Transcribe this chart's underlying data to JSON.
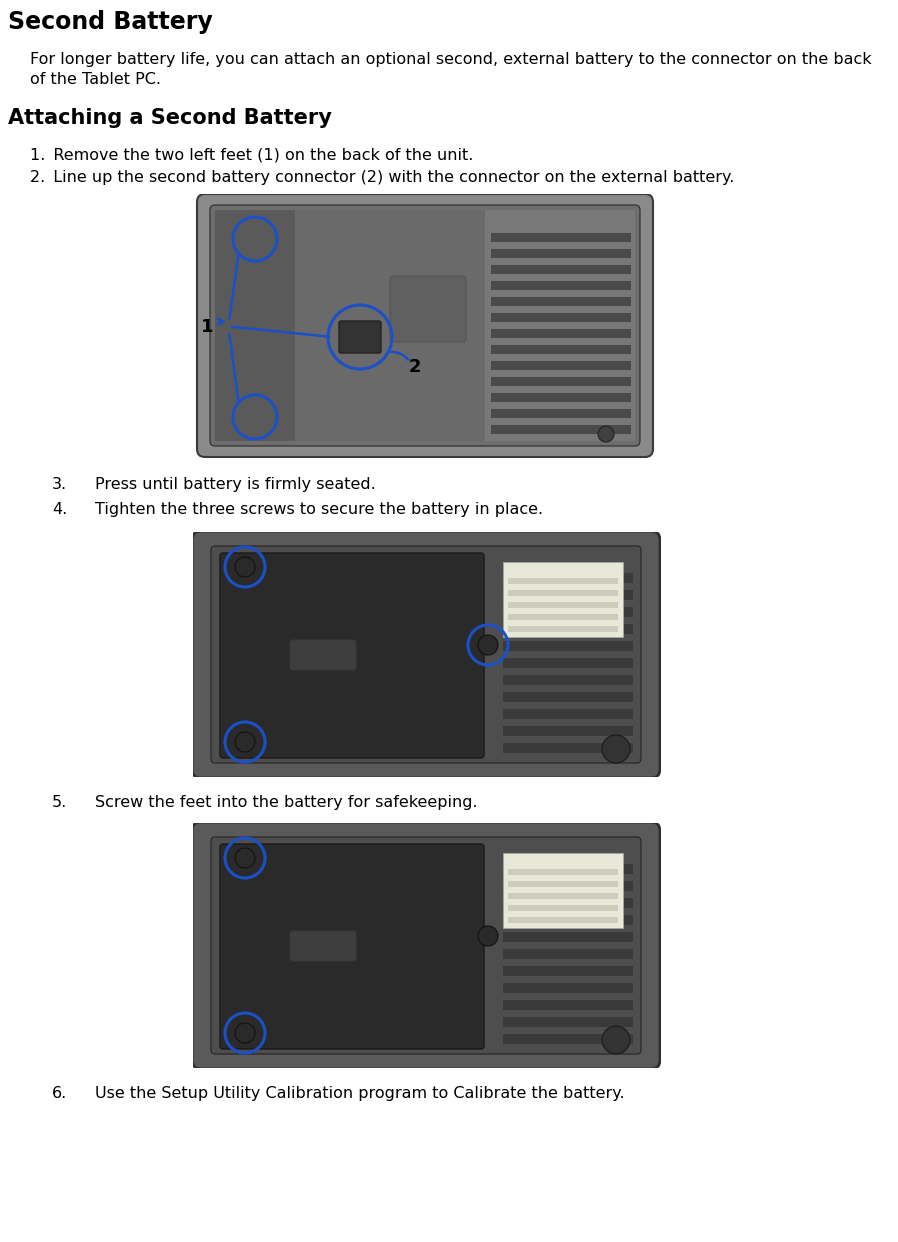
{
  "title": "Second Battery",
  "intro_line1": "For longer battery life, you can attach an optional second, external battery to the connector on the back",
  "intro_line2": "of the Tablet PC.",
  "subtitle": "Attaching a Second Battery",
  "step1": "1. Remove the two left feet (1) on the back of the unit.",
  "step2": "2. Line up the second battery connector (2) with the connector on the external battery.",
  "step3_num": "3.",
  "step3_txt": "Press until battery is firmly seated.",
  "step4_num": "4.",
  "step4_txt": "Tighten the three screws to secure the battery in place.",
  "step5_num": "5.",
  "step5_txt": "Screw the feet into the battery for safekeeping.",
  "step6_num": "6.",
  "step6_txt": "Use the Setup Utility Calibration program to Calibrate the battery.",
  "bg_color": "#ffffff",
  "title_fs": 17,
  "subtitle_fs": 15,
  "body_fs": 11.5,
  "fig_w": 8.98,
  "fig_h": 12.42,
  "dpi": 100
}
